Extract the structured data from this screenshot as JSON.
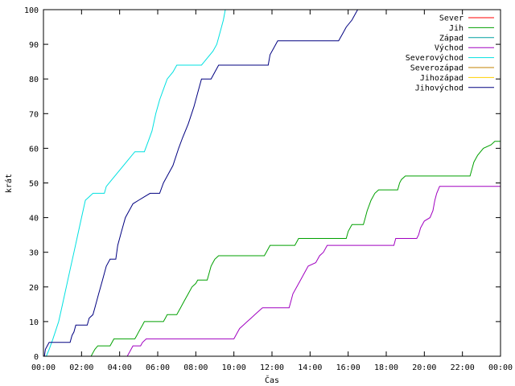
{
  "chart_data": {
    "type": "line",
    "title": "",
    "xlabel": "Čas",
    "ylabel": "krát",
    "ylim": [
      0,
      100
    ],
    "xlim": [
      0,
      24
    ],
    "y_ticks": [
      "0",
      "10",
      "20",
      "30",
      "40",
      "50",
      "60",
      "70",
      "80",
      "90",
      "100"
    ],
    "x_ticks": [
      "00:00",
      "02:00",
      "04:00",
      "06:00",
      "08:00",
      "10:00",
      "12:00",
      "14:00",
      "16:00",
      "18:00",
      "20:00",
      "22:00",
      "00:00"
    ],
    "legend_position": "top-right",
    "grid": false,
    "series": [
      {
        "name": "Sever",
        "color": "#ff0000",
        "points": []
      },
      {
        "name": "Jih",
        "color": "#00a000",
        "points": [
          [
            2.5,
            0
          ],
          [
            2.6,
            1
          ],
          [
            2.7,
            2
          ],
          [
            2.85,
            3
          ],
          [
            3.5,
            3
          ],
          [
            3.6,
            4
          ],
          [
            3.7,
            5
          ],
          [
            4.8,
            5
          ],
          [
            4.9,
            6
          ],
          [
            5.0,
            7
          ],
          [
            5.1,
            8
          ],
          [
            5.2,
            9
          ],
          [
            5.3,
            10
          ],
          [
            6.3,
            10
          ],
          [
            6.4,
            11
          ],
          [
            6.5,
            12
          ],
          [
            7.0,
            12
          ],
          [
            7.1,
            13
          ],
          [
            7.2,
            14
          ],
          [
            7.4,
            16
          ],
          [
            7.6,
            18
          ],
          [
            7.8,
            20
          ],
          [
            8.0,
            21
          ],
          [
            8.1,
            22
          ],
          [
            8.6,
            22
          ],
          [
            8.7,
            24
          ],
          [
            8.8,
            26
          ],
          [
            8.9,
            27
          ],
          [
            9.0,
            28
          ],
          [
            9.2,
            29
          ],
          [
            11.6,
            29
          ],
          [
            11.7,
            30
          ],
          [
            11.8,
            31
          ],
          [
            11.9,
            32
          ],
          [
            13.2,
            32
          ],
          [
            13.3,
            33
          ],
          [
            13.4,
            34
          ],
          [
            15.9,
            34
          ],
          [
            16.0,
            36
          ],
          [
            16.2,
            38
          ],
          [
            16.8,
            38
          ],
          [
            16.9,
            40
          ],
          [
            17.0,
            42
          ],
          [
            17.2,
            45
          ],
          [
            17.4,
            47
          ],
          [
            17.6,
            48
          ],
          [
            18.6,
            48
          ],
          [
            18.7,
            50
          ],
          [
            18.8,
            51
          ],
          [
            19.0,
            52
          ],
          [
            22.4,
            52
          ],
          [
            22.5,
            54
          ],
          [
            22.6,
            56
          ],
          [
            22.8,
            58
          ],
          [
            23.1,
            60
          ],
          [
            23.5,
            61
          ],
          [
            23.7,
            62
          ],
          [
            24.0,
            62
          ]
        ]
      },
      {
        "name": "Západ",
        "color": "#00a0a0",
        "points": []
      },
      {
        "name": "Východ",
        "color": "#a000c0",
        "points": [
          [
            4.4,
            0
          ],
          [
            4.5,
            1
          ],
          [
            4.6,
            2
          ],
          [
            4.7,
            3
          ],
          [
            5.1,
            3
          ],
          [
            5.2,
            4
          ],
          [
            5.4,
            5
          ],
          [
            10.0,
            5
          ],
          [
            10.1,
            6
          ],
          [
            10.2,
            7
          ],
          [
            10.3,
            8
          ],
          [
            10.5,
            9
          ],
          [
            10.7,
            10
          ],
          [
            10.9,
            11
          ],
          [
            11.1,
            12
          ],
          [
            11.3,
            13
          ],
          [
            11.5,
            14
          ],
          [
            12.9,
            14
          ],
          [
            13.0,
            16
          ],
          [
            13.1,
            18
          ],
          [
            13.3,
            20
          ],
          [
            13.5,
            22
          ],
          [
            13.7,
            24
          ],
          [
            13.9,
            26
          ],
          [
            14.3,
            27
          ],
          [
            14.5,
            29
          ],
          [
            14.7,
            30
          ],
          [
            14.9,
            32
          ],
          [
            18.4,
            32
          ],
          [
            18.5,
            34
          ],
          [
            19.6,
            34
          ],
          [
            19.7,
            35
          ],
          [
            19.8,
            37
          ],
          [
            20.0,
            39
          ],
          [
            20.3,
            40
          ],
          [
            20.45,
            42
          ],
          [
            20.55,
            45
          ],
          [
            20.65,
            47
          ],
          [
            20.8,
            49
          ],
          [
            24.0,
            49
          ]
        ]
      },
      {
        "name": "Severovýchod",
        "color": "#00e0e0",
        "points": [
          [
            0.15,
            0
          ],
          [
            0.3,
            2
          ],
          [
            0.5,
            5
          ],
          [
            0.8,
            10
          ],
          [
            1.0,
            15
          ],
          [
            1.2,
            20
          ],
          [
            1.4,
            25
          ],
          [
            1.6,
            30
          ],
          [
            1.8,
            35
          ],
          [
            2.0,
            40
          ],
          [
            2.2,
            45
          ],
          [
            2.4,
            46
          ],
          [
            2.6,
            47
          ],
          [
            3.2,
            47
          ],
          [
            3.3,
            49
          ],
          [
            3.6,
            51
          ],
          [
            3.9,
            53
          ],
          [
            4.2,
            55
          ],
          [
            4.5,
            57
          ],
          [
            4.8,
            59
          ],
          [
            5.3,
            59
          ],
          [
            5.5,
            62
          ],
          [
            5.7,
            65
          ],
          [
            5.9,
            70
          ],
          [
            6.1,
            74
          ],
          [
            6.3,
            77
          ],
          [
            6.5,
            80
          ],
          [
            6.8,
            82
          ],
          [
            7.0,
            84
          ],
          [
            8.3,
            84
          ],
          [
            8.6,
            86
          ],
          [
            8.9,
            88
          ],
          [
            9.1,
            90
          ],
          [
            9.3,
            94
          ],
          [
            9.45,
            97
          ],
          [
            9.55,
            100
          ]
        ]
      },
      {
        "name": "Severozápad",
        "color": "#c08000",
        "points": []
      },
      {
        "name": "Jihozápad",
        "color": "#ffd000",
        "points": []
      },
      {
        "name": "Jihovýchod",
        "color": "#000080",
        "points": [
          [
            0.05,
            0
          ],
          [
            0.1,
            2
          ],
          [
            0.2,
            3
          ],
          [
            0.3,
            4
          ],
          [
            1.4,
            4
          ],
          [
            1.5,
            6
          ],
          [
            1.6,
            7
          ],
          [
            1.7,
            9
          ],
          [
            2.3,
            9
          ],
          [
            2.4,
            11
          ],
          [
            2.6,
            12
          ],
          [
            2.7,
            14
          ],
          [
            2.9,
            18
          ],
          [
            3.1,
            22
          ],
          [
            3.3,
            26
          ],
          [
            3.5,
            28
          ],
          [
            3.8,
            28
          ],
          [
            3.9,
            32
          ],
          [
            4.1,
            36
          ],
          [
            4.3,
            40
          ],
          [
            4.5,
            42
          ],
          [
            4.7,
            44
          ],
          [
            5.0,
            45
          ],
          [
            5.3,
            46
          ],
          [
            5.6,
            47
          ],
          [
            6.1,
            47
          ],
          [
            6.3,
            50
          ],
          [
            6.5,
            52
          ],
          [
            6.8,
            55
          ],
          [
            7.1,
            60
          ],
          [
            7.3,
            63
          ],
          [
            7.6,
            67
          ],
          [
            7.9,
            72
          ],
          [
            8.1,
            76
          ],
          [
            8.3,
            80
          ],
          [
            8.8,
            80
          ],
          [
            9.0,
            82
          ],
          [
            9.2,
            84
          ],
          [
            11.8,
            84
          ],
          [
            11.9,
            87
          ],
          [
            12.1,
            89
          ],
          [
            12.3,
            91
          ],
          [
            15.5,
            91
          ],
          [
            15.7,
            93
          ],
          [
            15.9,
            95
          ],
          [
            16.2,
            97
          ],
          [
            16.4,
            99
          ],
          [
            16.5,
            100
          ]
        ]
      }
    ]
  }
}
